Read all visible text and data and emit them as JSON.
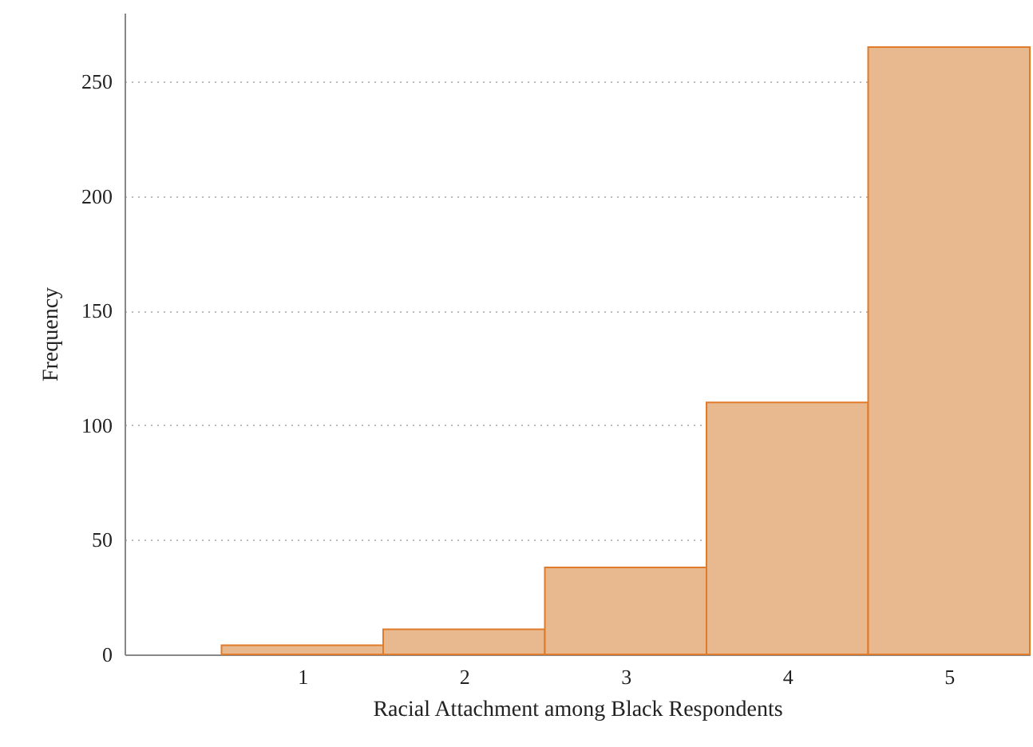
{
  "chart_data": {
    "type": "histogram",
    "xlabel": "Racial Attachment among Black Respondents",
    "ylabel": "Frequency",
    "bins": [
      0.5,
      1.5,
      2.5,
      3.5,
      4.5,
      5.5
    ],
    "values": [
      4,
      11,
      38,
      110,
      265
    ],
    "color": "#e8b98f",
    "xlim": [
      -0.1,
      5.5
    ],
    "xticks": [
      1,
      2,
      3,
      4,
      5
    ],
    "ylim": [
      0,
      280
    ],
    "yticks": [
      0,
      50,
      100,
      150,
      200,
      250
    ],
    "grid": "y"
  }
}
